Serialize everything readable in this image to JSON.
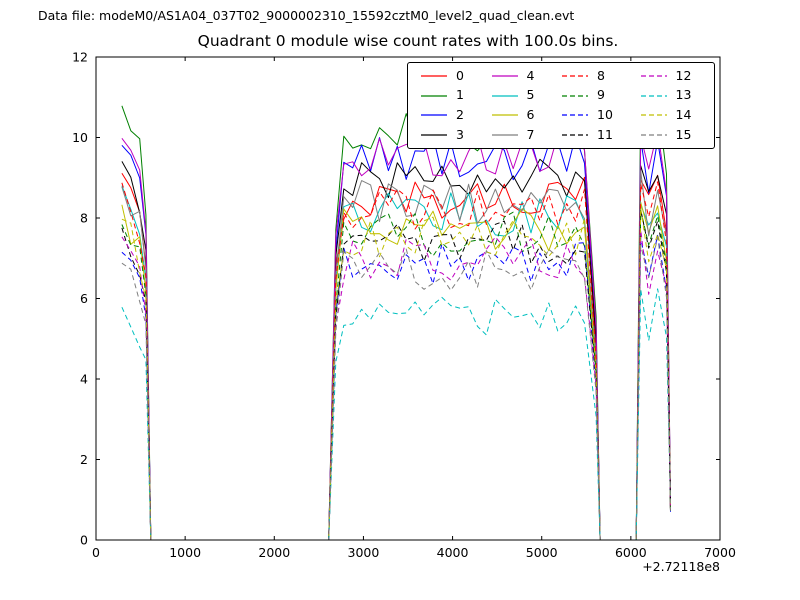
{
  "header": {
    "data_file_label": "Data file: modeM0/AS1A04_037T02_9000002310_15592cztM0_level2_quad_clean.evt"
  },
  "chart_data": {
    "type": "line",
    "title": "Quadrant 0 module wise count rates with 100.0s bins.",
    "xlabel": "",
    "ylabel": "",
    "x_axis_offset_label": "+2.72118e8",
    "xlim": [
      0,
      7000
    ],
    "ylim": [
      0,
      12
    ],
    "xticks": [
      0,
      1000,
      2000,
      3000,
      4000,
      5000,
      6000,
      7000
    ],
    "yticks": [
      0,
      2,
      4,
      6,
      8,
      10,
      12
    ],
    "grid": false,
    "legend": {
      "position": "upper center-right",
      "columns": 4,
      "rows": 4,
      "order": "column-major"
    },
    "profile": {
      "bin_seconds": 100,
      "burst1_x0": 290,
      "burst1_x1": 560,
      "zero1_x0": 615,
      "zero1_x1": 2610,
      "main_x0": 2690,
      "main_x1": 5560,
      "zero2_x0": 5655,
      "zero2_x1": 6060,
      "burst2_x0": 6110,
      "burst2_x1": 6400,
      "tail_x": 6445,
      "tail_value": 0.85,
      "start_peak_offset": 0.45,
      "noise_amplitude": 0.55
    },
    "series": [
      {
        "name": "0",
        "color": "#ff0000",
        "dash": false,
        "plateau": 8.5
      },
      {
        "name": "1",
        "color": "#008000",
        "dash": false,
        "plateau": 10.1
      },
      {
        "name": "2",
        "color": "#0000ff",
        "dash": false,
        "plateau": 9.5
      },
      {
        "name": "3",
        "color": "#000000",
        "dash": false,
        "plateau": 9.0
      },
      {
        "name": "4",
        "color": "#bf00bf",
        "dash": false,
        "plateau": 9.6
      },
      {
        "name": "5",
        "color": "#00bfbf",
        "dash": false,
        "plateau": 8.1
      },
      {
        "name": "6",
        "color": "#bfbf00",
        "dash": false,
        "plateau": 7.7
      },
      {
        "name": "7",
        "color": "#7f7f7f",
        "dash": false,
        "plateau": 8.4
      },
      {
        "name": "8",
        "color": "#ff0000",
        "dash": true,
        "plateau": 8.2
      },
      {
        "name": "9",
        "color": "#008000",
        "dash": true,
        "plateau": 7.6
      },
      {
        "name": "10",
        "color": "#0000ff",
        "dash": true,
        "plateau": 6.9
      },
      {
        "name": "11",
        "color": "#000000",
        "dash": true,
        "plateau": 7.4
      },
      {
        "name": "12",
        "color": "#bf00bf",
        "dash": true,
        "plateau": 7.0
      },
      {
        "name": "13",
        "color": "#00bfbf",
        "dash": true,
        "plateau": 5.6
      },
      {
        "name": "14",
        "color": "#bfbf00",
        "dash": true,
        "plateau": 7.5
      },
      {
        "name": "15",
        "color": "#7f7f7f",
        "dash": true,
        "plateau": 6.7
      }
    ]
  }
}
